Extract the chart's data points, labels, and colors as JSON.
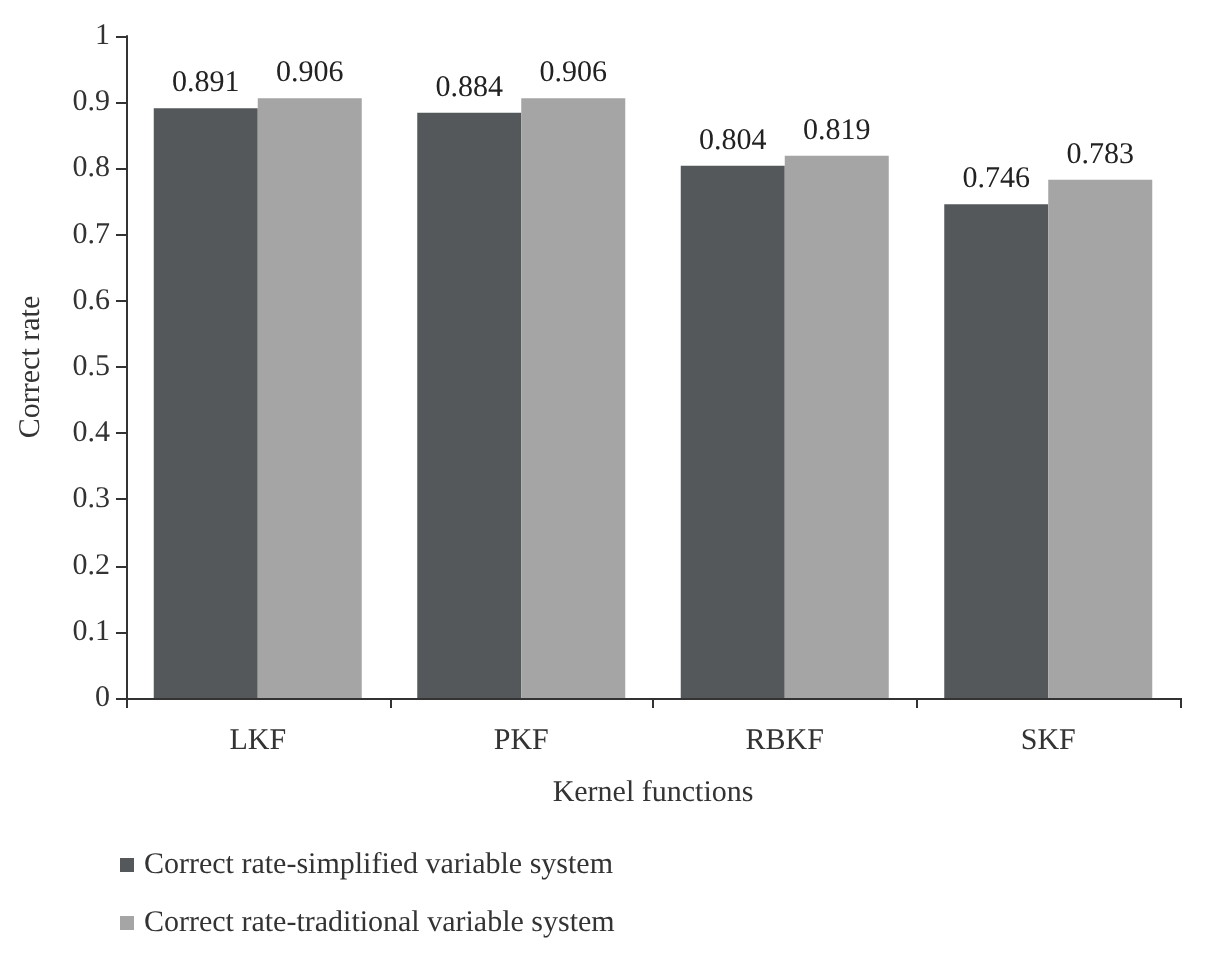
{
  "chart_data": {
    "type": "bar",
    "xlabel": "Kernel functions",
    "ylabel": "Correct rate",
    "categories": [
      "LKF",
      "PKF",
      "RBKF",
      "SKF"
    ],
    "series": [
      {
        "name": "Correct rate-simplified variable system",
        "color": "#54585a",
        "values": [
          0.891,
          0.884,
          0.804,
          0.746
        ]
      },
      {
        "name": "Correct rate-traditional variable system",
        "color": "#a5a5a5",
        "values": [
          0.906,
          0.906,
          0.819,
          0.783
        ]
      }
    ],
    "ylim": [
      0,
      1
    ],
    "yticks": [
      0,
      0.1,
      0.2,
      0.3,
      0.4,
      0.5,
      0.6,
      0.7,
      0.8,
      0.9,
      1
    ],
    "grid": false,
    "legend": "bottom left",
    "data_labels": true
  }
}
